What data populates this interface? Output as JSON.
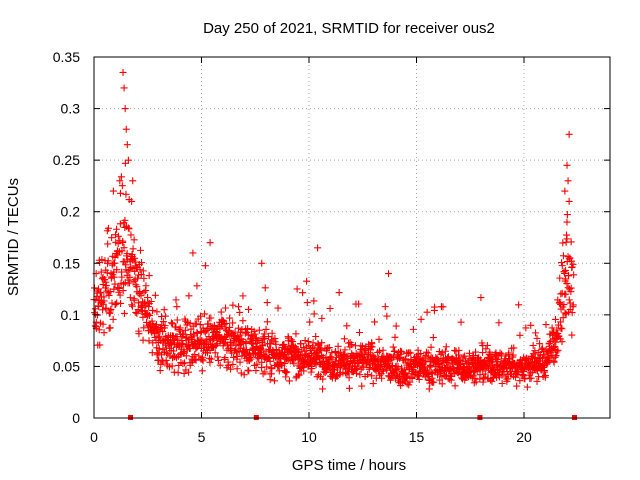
{
  "chart_data": {
    "type": "scatter",
    "title": "Day 250 of 2021, SRMTID for receiver ous2",
    "xlabel": "GPS time / hours",
    "ylabel": "SRMTID / TECUs",
    "xlim": [
      0,
      24
    ],
    "ylim": [
      0,
      0.35
    ],
    "x_ticks": [
      0,
      5,
      10,
      15,
      20
    ],
    "x_tick_labels": [
      "0",
      "5",
      "10",
      "15",
      "20"
    ],
    "y_ticks": [
      0,
      0.05,
      0.1,
      0.15,
      0.2,
      0.25,
      0.3,
      0.35
    ],
    "y_tick_labels": [
      "0",
      "0.05",
      "0.1",
      "0.15",
      "0.2",
      "0.25",
      "0.3",
      "0.35"
    ],
    "grid": true,
    "marker": "+",
    "series": [
      {
        "name": "SRMTID",
        "color": "#ff0000",
        "trend": [
          [
            0.0,
            0.1
          ],
          [
            0.5,
            0.12
          ],
          [
            1.0,
            0.15
          ],
          [
            1.5,
            0.17
          ],
          [
            2.0,
            0.13
          ],
          [
            2.5,
            0.1
          ],
          [
            3.0,
            0.075
          ],
          [
            4.0,
            0.07
          ],
          [
            5.0,
            0.075
          ],
          [
            6.0,
            0.075
          ],
          [
            7.0,
            0.07
          ],
          [
            8.0,
            0.065
          ],
          [
            9.0,
            0.06
          ],
          [
            10.0,
            0.06
          ],
          [
            11.0,
            0.055
          ],
          [
            12.0,
            0.055
          ],
          [
            13.0,
            0.055
          ],
          [
            14.0,
            0.05
          ],
          [
            15.0,
            0.05
          ],
          [
            16.0,
            0.05
          ],
          [
            17.0,
            0.05
          ],
          [
            18.0,
            0.05
          ],
          [
            19.0,
            0.05
          ],
          [
            20.0,
            0.05
          ],
          [
            21.0,
            0.055
          ],
          [
            21.5,
            0.08
          ],
          [
            22.0,
            0.14
          ],
          [
            22.3,
            0.12
          ]
        ],
        "highlights": [
          [
            1.35,
            0.335
          ],
          [
            1.4,
            0.32
          ],
          [
            1.45,
            0.3
          ],
          [
            1.5,
            0.28
          ],
          [
            1.55,
            0.265
          ],
          [
            1.6,
            0.25
          ],
          [
            1.2,
            0.23
          ],
          [
            1.8,
            0.23
          ],
          [
            0.9,
            0.22
          ],
          [
            1.75,
            0.21
          ],
          [
            22.1,
            0.275
          ],
          [
            22.0,
            0.245
          ],
          [
            22.05,
            0.23
          ],
          [
            21.9,
            0.22
          ],
          [
            22.1,
            0.21
          ],
          [
            22.0,
            0.19
          ],
          [
            5.4,
            0.17
          ],
          [
            10.4,
            0.165
          ],
          [
            13.7,
            0.14
          ],
          [
            7.8,
            0.15
          ],
          [
            4.6,
            0.16
          ],
          [
            0.1,
            0.14
          ]
        ],
        "n_points": 1900
      }
    ],
    "axis_markers_x": [
      1.7,
      7.55,
      17.95,
      22.35
    ]
  }
}
